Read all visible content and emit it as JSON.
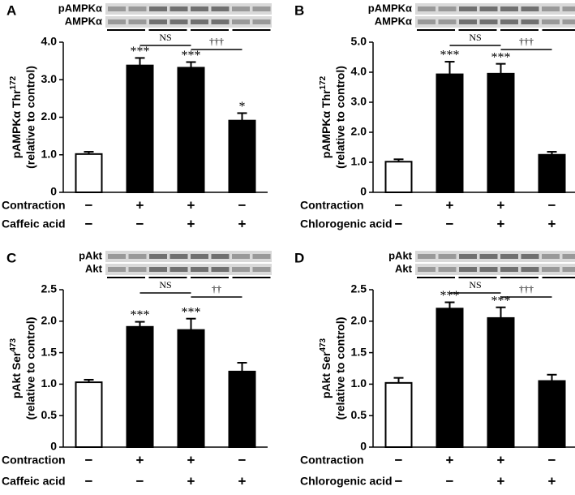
{
  "chart_data": [
    {
      "type": "bar",
      "panel_label": "A",
      "blot_labels": [
        "pAMPKα",
        "AMPKα"
      ],
      "ylabel": {
        "text": "pAMPKα Thr",
        "superscript": "172"
      },
      "ylabel2": "(relative to control)",
      "values": [
        1.02,
        3.38,
        3.32,
        1.91
      ],
      "errors": [
        0.06,
        0.2,
        0.15,
        0.2
      ],
      "colors": [
        "#ffffff",
        "#000000",
        "#000000",
        "#000000"
      ],
      "annotations": [
        null,
        "***",
        "***",
        "*"
      ],
      "brackets": [
        "NS",
        "†††"
      ],
      "conditions": [
        {
          "name": "Contraction",
          "signs": [
            "−",
            "+",
            "+",
            "−"
          ]
        },
        {
          "name": "Caffeic acid",
          "signs": [
            "−",
            "−",
            "+",
            "+"
          ]
        }
      ],
      "ylim": [
        0,
        4
      ],
      "yticks": [
        0,
        {
          "value": 1,
          "label": "1.0"
        },
        {
          "value": 2,
          "label": "2.0"
        },
        {
          "value": 3,
          "label": "3.0"
        },
        {
          "value": 4,
          "label": "4.0"
        }
      ]
    },
    {
      "type": "bar",
      "panel_label": "B",
      "blot_labels": [
        "pAMPKα",
        "AMPKα"
      ],
      "ylabel": {
        "text": "pAMPKα Thr",
        "superscript": "172"
      },
      "ylabel2": "(relative to control)",
      "values": [
        1.02,
        3.93,
        3.95,
        1.25
      ],
      "errors": [
        0.08,
        0.42,
        0.33,
        0.1
      ],
      "colors": [
        "#ffffff",
        "#000000",
        "#000000",
        "#000000"
      ],
      "annotations": [
        null,
        "***",
        "***",
        null
      ],
      "brackets": [
        "NS",
        "†††"
      ],
      "conditions": [
        {
          "name": "Contraction",
          "signs": [
            "−",
            "+",
            "+",
            "−"
          ]
        },
        {
          "name": "Chlorogenic acid",
          "signs": [
            "−",
            "−",
            "+",
            "+"
          ]
        }
      ],
      "ylim": [
        0,
        5
      ],
      "yticks": [
        0,
        {
          "value": 1,
          "label": "1.0"
        },
        {
          "value": 2,
          "label": "2.0"
        },
        {
          "value": 3,
          "label": "3.0"
        },
        {
          "value": 4,
          "label": "4.0"
        },
        {
          "value": 5,
          "label": "5.0"
        }
      ]
    },
    {
      "type": "bar",
      "panel_label": "C",
      "blot_labels": [
        "pAkt",
        "Akt"
      ],
      "ylabel": {
        "text": "pAkt Ser",
        "superscript": "473"
      },
      "ylabel2": "(relative to control)",
      "values": [
        1.03,
        1.91,
        1.86,
        1.2
      ],
      "errors": [
        0.04,
        0.08,
        0.18,
        0.14
      ],
      "colors": [
        "#ffffff",
        "#000000",
        "#000000",
        "#000000"
      ],
      "annotations": [
        null,
        "***",
        "***",
        null
      ],
      "brackets": [
        "NS",
        "††"
      ],
      "conditions": [
        {
          "name": "Contraction",
          "signs": [
            "−",
            "+",
            "+",
            "−"
          ]
        },
        {
          "name": "Caffeic acid",
          "signs": [
            "−",
            "−",
            "+",
            "+"
          ]
        }
      ],
      "ylim": [
        0,
        2.5
      ],
      "yticks": [
        0,
        0.5,
        {
          "value": 1,
          "label": "1.0"
        },
        1.5,
        {
          "value": 2,
          "label": "2.0"
        },
        2.5
      ]
    },
    {
      "type": "bar",
      "panel_label": "D",
      "blot_labels": [
        "pAkt",
        "Akt"
      ],
      "ylabel": {
        "text": "pAkt Ser",
        "superscript": "473"
      },
      "ylabel2": "(relative to control)",
      "values": [
        1.02,
        2.2,
        2.05,
        1.05
      ],
      "errors": [
        0.08,
        0.1,
        0.17,
        0.1
      ],
      "colors": [
        "#ffffff",
        "#000000",
        "#000000",
        "#000000"
      ],
      "annotations": [
        null,
        "***",
        "***",
        null
      ],
      "brackets": [
        "NS",
        "†††"
      ],
      "conditions": [
        {
          "name": "Contraction",
          "signs": [
            "−",
            "+",
            "+",
            "−"
          ]
        },
        {
          "name": "Chlorogenic acid",
          "signs": [
            "−",
            "−",
            "+",
            "+"
          ]
        }
      ],
      "ylim": [
        0,
        2.5
      ],
      "yticks": [
        0,
        0.5,
        {
          "value": 1,
          "label": "1.0"
        },
        1.5,
        {
          "value": 2,
          "label": "2.0"
        },
        2.5
      ]
    }
  ]
}
